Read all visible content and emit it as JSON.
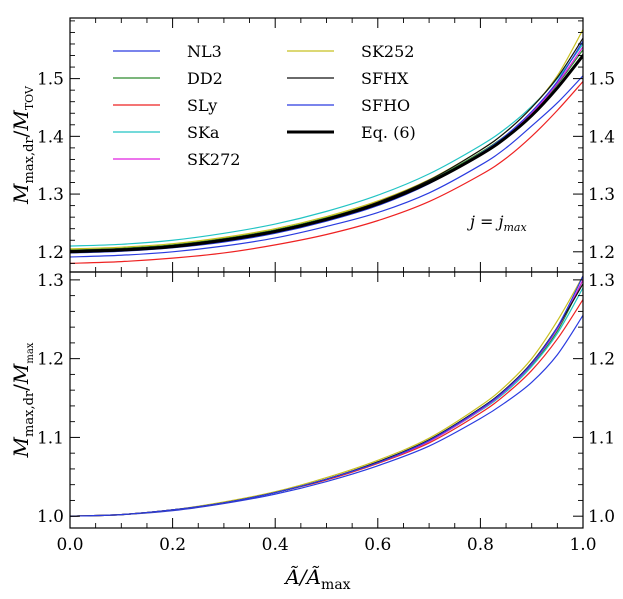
{
  "chart_data": [
    {
      "type": "line",
      "panel": "top",
      "ylabel_main": "M",
      "ylabel_sub": "max,dr",
      "ylabel_den_main": "M",
      "ylabel_den_sub": "TOV",
      "xlim": [
        0.0,
        1.0
      ],
      "ylim": [
        1.165,
        1.605
      ],
      "yticks": [
        1.2,
        1.3,
        1.4,
        1.5
      ],
      "ytick_labels": [
        "1.2",
        "1.3",
        "1.4",
        "1.5"
      ],
      "annotation": "j = j",
      "annotation_sub": "max",
      "legend": "top-left, two columns",
      "series": [
        {
          "name": "NL3",
          "color": "#2a3be0",
          "width": 1.2,
          "x": [
            0,
            0.1,
            0.2,
            0.3,
            0.4,
            0.5,
            0.6,
            0.7,
            0.8,
            0.85,
            0.9,
            0.95,
            1.0
          ],
          "y": [
            1.191,
            1.194,
            1.2,
            1.21,
            1.224,
            1.244,
            1.268,
            1.302,
            1.35,
            1.38,
            1.418,
            1.458,
            1.505
          ]
        },
        {
          "name": "DD2",
          "color": "#2e8b2e",
          "width": 1.2,
          "x": [
            0,
            0.1,
            0.2,
            0.3,
            0.4,
            0.5,
            0.6,
            0.7,
            0.8,
            0.85,
            0.9,
            0.95,
            1.0
          ],
          "y": [
            1.203,
            1.206,
            1.212,
            1.223,
            1.238,
            1.259,
            1.286,
            1.322,
            1.372,
            1.402,
            1.44,
            1.49,
            1.55
          ]
        },
        {
          "name": "SLy",
          "color": "#ee2222",
          "width": 1.2,
          "x": [
            0,
            0.1,
            0.2,
            0.3,
            0.4,
            0.5,
            0.6,
            0.7,
            0.8,
            0.85,
            0.9,
            0.95,
            1.0
          ],
          "y": [
            1.18,
            1.183,
            1.189,
            1.198,
            1.212,
            1.23,
            1.254,
            1.287,
            1.333,
            1.362,
            1.4,
            1.445,
            1.495
          ]
        },
        {
          "name": "SKa",
          "color": "#22c4c4",
          "width": 1.2,
          "x": [
            0,
            0.1,
            0.2,
            0.3,
            0.4,
            0.5,
            0.6,
            0.7,
            0.8,
            0.85,
            0.9,
            0.95,
            1.0
          ],
          "y": [
            1.21,
            1.213,
            1.22,
            1.232,
            1.248,
            1.27,
            1.298,
            1.335,
            1.384,
            1.414,
            1.452,
            1.5,
            1.56
          ]
        },
        {
          "name": "SK272",
          "color": "#e020e0",
          "width": 1.2,
          "x": [
            0,
            0.1,
            0.2,
            0.3,
            0.4,
            0.5,
            0.6,
            0.7,
            0.8,
            0.85,
            0.9,
            0.95,
            1.0
          ],
          "y": [
            1.2,
            1.203,
            1.209,
            1.22,
            1.235,
            1.256,
            1.283,
            1.32,
            1.37,
            1.401,
            1.44,
            1.492,
            1.555
          ]
        },
        {
          "name": "SK252",
          "color": "#c8c020",
          "width": 1.2,
          "x": [
            0,
            0.1,
            0.2,
            0.3,
            0.4,
            0.5,
            0.6,
            0.7,
            0.8,
            0.85,
            0.9,
            0.95,
            1.0
          ],
          "y": [
            1.205,
            1.208,
            1.214,
            1.225,
            1.24,
            1.261,
            1.288,
            1.325,
            1.376,
            1.408,
            1.45,
            1.505,
            1.585
          ]
        },
        {
          "name": "SFHX",
          "color": "#111111",
          "width": 1.2,
          "x": [
            0,
            0.1,
            0.2,
            0.3,
            0.4,
            0.5,
            0.6,
            0.7,
            0.8,
            0.85,
            0.9,
            0.95,
            1.0
          ],
          "y": [
            1.202,
            1.205,
            1.211,
            1.222,
            1.237,
            1.258,
            1.286,
            1.324,
            1.376,
            1.408,
            1.45,
            1.502,
            1.57
          ]
        },
        {
          "name": "SFHO",
          "color": "#2a3be0",
          "width": 1.2,
          "x": [
            0,
            0.1,
            0.2,
            0.3,
            0.4,
            0.5,
            0.6,
            0.7,
            0.8,
            0.85,
            0.9,
            0.95,
            1.0
          ],
          "y": [
            1.198,
            1.201,
            1.207,
            1.217,
            1.232,
            1.253,
            1.28,
            1.318,
            1.37,
            1.402,
            1.443,
            1.495,
            1.565
          ]
        },
        {
          "name": "Eq. (6)",
          "color": "#000000",
          "width": 3.0,
          "x": [
            0,
            0.1,
            0.2,
            0.3,
            0.4,
            0.5,
            0.6,
            0.7,
            0.8,
            0.85,
            0.9,
            0.95,
            1.0
          ],
          "y": [
            1.2,
            1.203,
            1.209,
            1.22,
            1.235,
            1.256,
            1.283,
            1.32,
            1.368,
            1.398,
            1.436,
            1.484,
            1.54
          ]
        }
      ]
    },
    {
      "type": "line",
      "panel": "bottom",
      "xlabel_main": "Ã/Ã",
      "xlabel_sub": "max",
      "ylabel_main": "M",
      "ylabel_sub": "max,dr",
      "ylabel_den_main": "M",
      "ylabel_den_sub": "max",
      "xlim": [
        0.0,
        1.0
      ],
      "ylim": [
        0.985,
        1.31
      ],
      "xticks": [
        0.0,
        0.2,
        0.4,
        0.6,
        0.8,
        1.0
      ],
      "xtick_labels": [
        "0.0",
        "0.2",
        "0.4",
        "0.6",
        "0.8",
        "1.0"
      ],
      "yticks": [
        1.0,
        1.1,
        1.2,
        1.3
      ],
      "ytick_labels": [
        "1.0",
        "1.1",
        "1.2",
        "1.3"
      ],
      "series": [
        {
          "name": "NL3",
          "color": "#2a3be0",
          "width": 1.2,
          "x": [
            0,
            0.1,
            0.2,
            0.3,
            0.4,
            0.5,
            0.6,
            0.7,
            0.8,
            0.85,
            0.9,
            0.95,
            1.0
          ],
          "y": [
            1.0,
            1.002,
            1.007,
            1.016,
            1.028,
            1.044,
            1.064,
            1.089,
            1.124,
            1.145,
            1.17,
            1.205,
            1.255
          ]
        },
        {
          "name": "DD2",
          "color": "#2e8b2e",
          "width": 1.2,
          "x": [
            0,
            0.1,
            0.2,
            0.3,
            0.4,
            0.5,
            0.6,
            0.7,
            0.8,
            0.85,
            0.9,
            0.95,
            1.0
          ],
          "y": [
            1.0,
            1.002,
            1.008,
            1.017,
            1.03,
            1.047,
            1.068,
            1.095,
            1.135,
            1.16,
            1.192,
            1.235,
            1.3
          ]
        },
        {
          "name": "SLy",
          "color": "#ee2222",
          "width": 1.2,
          "x": [
            0,
            0.1,
            0.2,
            0.3,
            0.4,
            0.5,
            0.6,
            0.7,
            0.8,
            0.85,
            0.9,
            0.95,
            1.0
          ],
          "y": [
            1.0,
            1.002,
            1.008,
            1.017,
            1.03,
            1.046,
            1.067,
            1.093,
            1.131,
            1.155,
            1.185,
            1.225,
            1.275
          ]
        },
        {
          "name": "SKa",
          "color": "#22c4c4",
          "width": 1.2,
          "x": [
            0,
            0.1,
            0.2,
            0.3,
            0.4,
            0.5,
            0.6,
            0.7,
            0.8,
            0.85,
            0.9,
            0.95,
            1.0
          ],
          "y": [
            1.0,
            1.002,
            1.008,
            1.017,
            1.03,
            1.047,
            1.068,
            1.095,
            1.134,
            1.158,
            1.19,
            1.232,
            1.29
          ]
        },
        {
          "name": "SK272",
          "color": "#e020e0",
          "width": 1.2,
          "x": [
            0,
            0.1,
            0.2,
            0.3,
            0.4,
            0.5,
            0.6,
            0.7,
            0.8,
            0.85,
            0.9,
            0.95,
            1.0
          ],
          "y": [
            1.0,
            1.002,
            1.008,
            1.017,
            1.03,
            1.047,
            1.068,
            1.095,
            1.135,
            1.16,
            1.193,
            1.238,
            1.3
          ]
        },
        {
          "name": "SK252",
          "color": "#c8c020",
          "width": 1.2,
          "x": [
            0,
            0.1,
            0.2,
            0.3,
            0.4,
            0.5,
            0.6,
            0.7,
            0.8,
            0.85,
            0.9,
            0.95,
            1.0
          ],
          "y": [
            1.0,
            1.002,
            1.008,
            1.018,
            1.031,
            1.049,
            1.071,
            1.099,
            1.14,
            1.166,
            1.2,
            1.248,
            1.305
          ]
        },
        {
          "name": "SFHX",
          "color": "#111111",
          "width": 1.2,
          "x": [
            0,
            0.1,
            0.2,
            0.3,
            0.4,
            0.5,
            0.6,
            0.7,
            0.8,
            0.85,
            0.9,
            0.95,
            1.0
          ],
          "y": [
            1.0,
            1.002,
            1.008,
            1.017,
            1.03,
            1.047,
            1.069,
            1.097,
            1.137,
            1.162,
            1.195,
            1.24,
            1.295
          ]
        },
        {
          "name": "SFHO",
          "color": "#2a3be0",
          "width": 1.2,
          "x": [
            0,
            0.1,
            0.2,
            0.3,
            0.4,
            0.5,
            0.6,
            0.7,
            0.8,
            0.85,
            0.9,
            0.95,
            1.0
          ],
          "y": [
            1.0,
            1.002,
            1.008,
            1.017,
            1.03,
            1.047,
            1.068,
            1.096,
            1.136,
            1.161,
            1.194,
            1.24,
            1.305
          ]
        }
      ]
    }
  ]
}
